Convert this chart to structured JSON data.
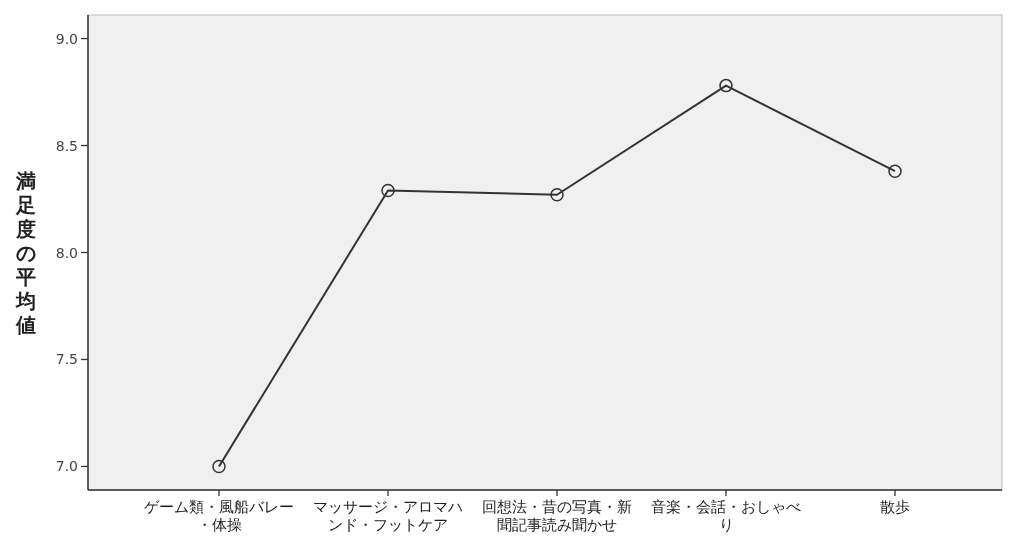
{
  "chart_data": {
    "type": "line",
    "ylabel": "満足度の平均値",
    "categories": [
      "ゲーム類・風船バレー・体操",
      "マッサージ・アロマハンド・フットケア",
      "回想法・昔の写真・新聞記事読み聞かせ",
      "音楽・会話・おしゃべり",
      "散歩"
    ],
    "values": [
      7.0,
      8.29,
      8.27,
      8.78,
      8.38
    ],
    "color": "#333333",
    "marker": "circle",
    "line_style": "solid",
    "ylim": [
      6.89,
      9.11
    ],
    "yticks": [
      {
        "value": 7,
        "label": "7.0"
      },
      {
        "value": 7.5,
        "label": "7.5"
      },
      {
        "value": 8,
        "label": "8.0"
      },
      {
        "value": 8.5,
        "label": "8.5"
      },
      {
        "value": 9,
        "label": "9.0"
      }
    ]
  }
}
